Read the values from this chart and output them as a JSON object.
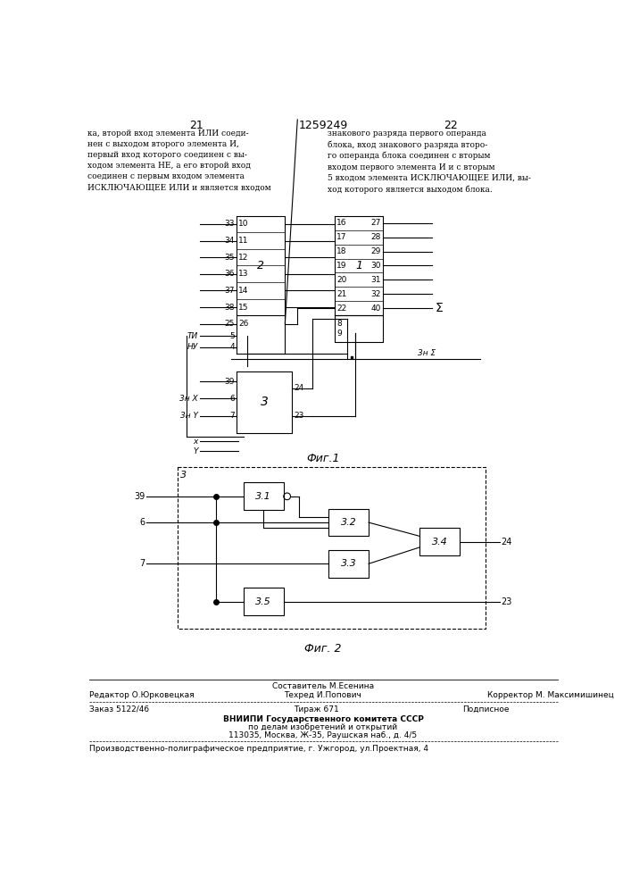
{
  "page_numbers": [
    "21",
    "22"
  ],
  "patent_number": "1259249",
  "header_text_left": "ка, второй вход элемента ИЛИ соеди-\nнен с выходом второго элемента И,\nпервый вход которого соединен с вы-\nходом элемента НЕ, а его второй вход\nсоединен с первым входом элемента\nИСКЛЮЧАЮЩЕЕ ИЛИ и является входом",
  "header_text_right": "знакового разряда первого операнда\nблока, вход знакового разряда второ-\nго операнда блока соединен с вторым\nвходом первого элемента И и с вторым\n5 входом элемента ИСКЛЮЧАЮЩЕЕ ИЛИ, вы-\nход которого является выходом блока.",
  "fig1_label": "Фиг.1",
  "fig2_label": "Фиг. 2",
  "block2_label": "2",
  "block1_label": "1",
  "block3_label": "3",
  "sigma_label": "Σ",
  "zn_sigma_label": "3н Σ",
  "znx_label": "3н X",
  "zny_label": "3н Y",
  "ti_label": "ТИ",
  "ny_label": "НУ",
  "x_label": "x",
  "y_label": "Y",
  "sub31_label": "3.1",
  "sub32_label": "3.2",
  "sub33_label": "3.3",
  "sub34_label": "3.4",
  "sub35_label": "3.5",
  "footer_editor": "Редактор О.Юрковецкая",
  "footer_compiler": "Составитель М.Есенина",
  "footer_techred": "Техред И.Попович",
  "footer_corrector": "Корректор М. Максимишинец",
  "footer_order": "Заказ 5122/46",
  "footer_tirazh": "Тираж 671",
  "footer_podpisnoe": "Подписное",
  "footer_vniipii": "ВНИИПИ Государственного комитета СССР",
  "footer_po_delam": "по делам изобретений и открытий",
  "footer_address": "113035, Москва, Ж-35, Раушская наб., д. 4/5",
  "footer_production": "Производственно-полиграфическое предприятие, г. Ужгород, ул.Проектная, 4"
}
